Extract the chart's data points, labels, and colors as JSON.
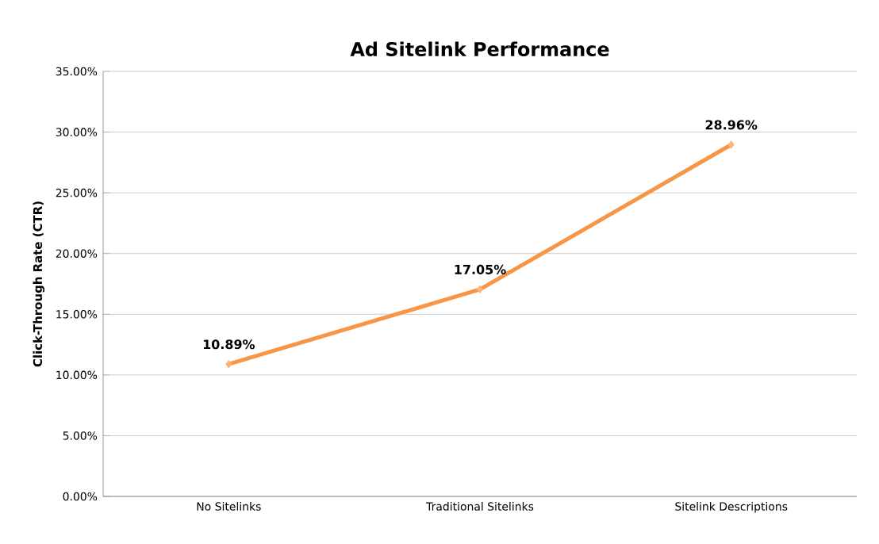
{
  "chart_data": {
    "type": "line",
    "title": "Ad Sitelink Performance",
    "ylabel": "Click-Through Rate (CTR)",
    "categories": [
      "No Sitelinks",
      "Traditional Sitelinks",
      "Sitelink Descriptions"
    ],
    "values": [
      10.89,
      17.05,
      28.96
    ],
    "value_labels": [
      "10.89%",
      "17.05%",
      "28.96%"
    ],
    "color": "#f79646",
    "marker": "diamond",
    "grid": "y",
    "ylim": [
      0,
      35
    ],
    "yticks": [
      {
        "value": 0,
        "label": "0.00%"
      },
      {
        "value": 5,
        "label": "5.00%"
      },
      {
        "value": 10,
        "label": "10.00%"
      },
      {
        "value": 15,
        "label": "15.00%"
      },
      {
        "value": 20,
        "label": "20.00%"
      },
      {
        "value": 25,
        "label": "25.00%"
      },
      {
        "value": 30,
        "label": "30.00%"
      },
      {
        "value": 35,
        "label": "35.00%"
      }
    ]
  }
}
